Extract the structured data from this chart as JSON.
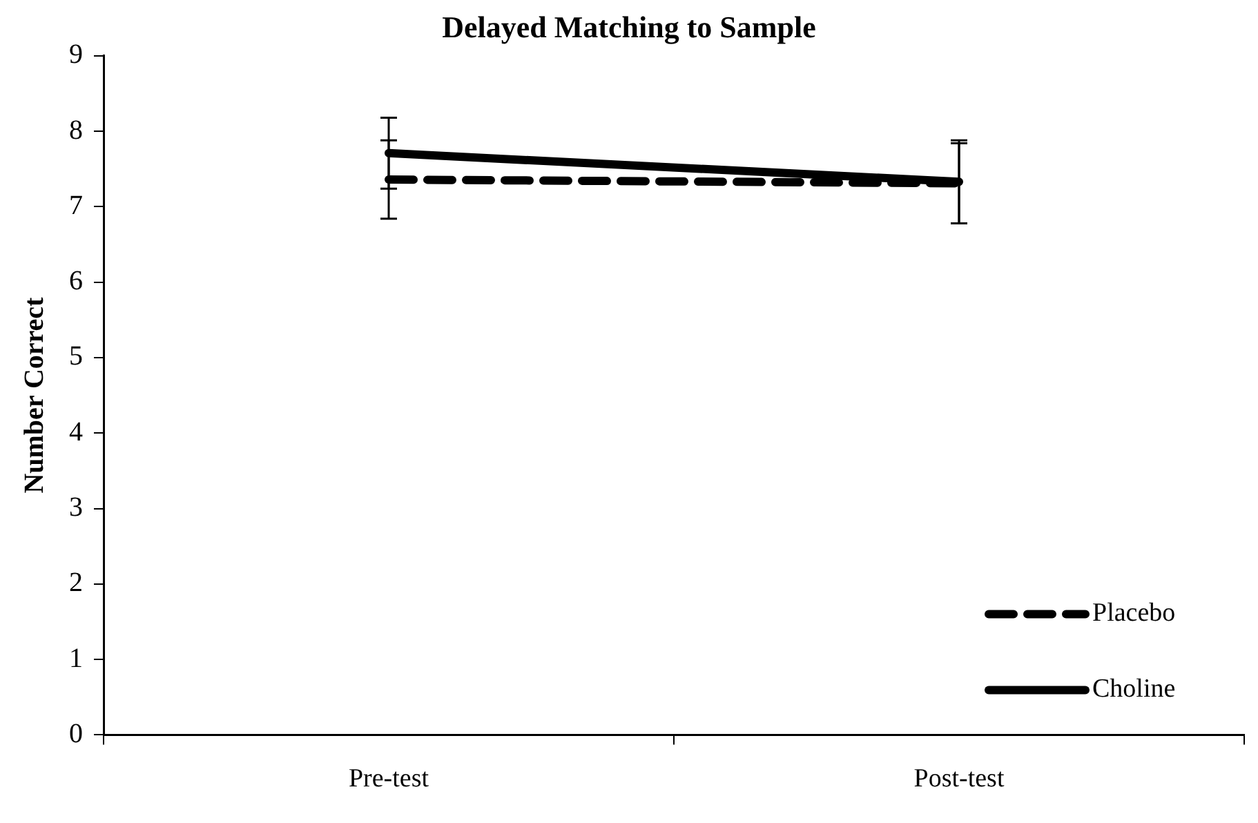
{
  "chart_data": {
    "type": "line",
    "title": "Delayed Matching to Sample",
    "ylabel": "Number Correct",
    "categories": [
      "Pre-test",
      "Post-test"
    ],
    "ylim": [
      0,
      9
    ],
    "yticks": [
      0,
      1,
      2,
      3,
      4,
      5,
      6,
      7,
      8,
      9
    ],
    "grid": false,
    "legend": "bottom right",
    "marker": "none",
    "series": [
      {
        "name": "Placebo",
        "color": "#000000",
        "line_style": "dashed",
        "values": [
          7.36,
          7.31
        ],
        "errors": [
          0.52,
          0.53
        ]
      },
      {
        "name": "Choline",
        "color": "#000000",
        "line_style": "solid",
        "values": [
          7.71,
          7.33
        ],
        "errors": [
          0.47,
          0.55
        ]
      }
    ]
  }
}
